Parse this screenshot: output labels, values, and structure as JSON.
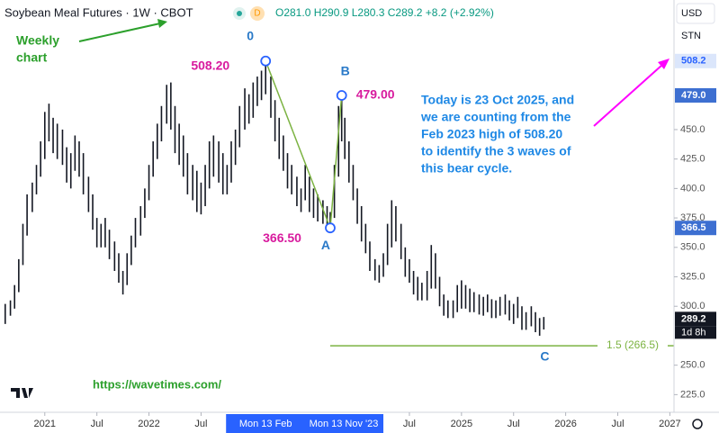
{
  "header": {
    "title": "Soybean Meal Futures · 1W · CBOT",
    "badge": "D",
    "ohlc": "O281.0 H290.9 L280.3 C289.2 +8.2 (+2.92%)"
  },
  "currency": "USD",
  "unit": "STN",
  "notes": {
    "weekly": [
      "Weekly",
      "chart"
    ],
    "comment": [
      "Today is 23 Oct 2025, and",
      "we are counting from the",
      "Feb 2023 high of 508.20",
      "to identify the 3 waves of",
      "this bear cycle."
    ],
    "url": "https://wavetimes.com/"
  },
  "chart_data": {
    "type": "ohlc",
    "color": "#131722",
    "xlim": [
      2020.57,
      2027.04
    ],
    "ylim": [
      210,
      560
    ],
    "x": [
      2020.62,
      2020.67,
      2020.71,
      2020.75,
      2020.79,
      2020.83,
      2020.88,
      2020.92,
      2020.96,
      2021.0,
      2021.04,
      2021.08,
      2021.12,
      2021.17,
      2021.21,
      2021.25,
      2021.29,
      2021.33,
      2021.37,
      2021.42,
      2021.46,
      2021.5,
      2021.54,
      2021.58,
      2021.62,
      2021.67,
      2021.71,
      2021.75,
      2021.79,
      2021.83,
      2021.87,
      2021.92,
      2021.96,
      2022.0,
      2022.04,
      2022.08,
      2022.12,
      2022.17,
      2022.21,
      2022.25,
      2022.29,
      2022.33,
      2022.37,
      2022.42,
      2022.46,
      2022.5,
      2022.54,
      2022.58,
      2022.62,
      2022.67,
      2022.71,
      2022.75,
      2022.79,
      2022.83,
      2022.87,
      2022.92,
      2022.96,
      2023.0,
      2023.04,
      2023.08,
      2023.12,
      2023.17,
      2023.21,
      2023.25,
      2023.29,
      2023.33,
      2023.37,
      2023.42,
      2023.46,
      2023.5,
      2023.54,
      2023.58,
      2023.62,
      2023.67,
      2023.71,
      2023.74,
      2023.78,
      2023.82,
      2023.85,
      2023.88,
      2023.92,
      2023.96,
      2024.0,
      2024.04,
      2024.08,
      2024.12,
      2024.17,
      2024.21,
      2024.25,
      2024.29,
      2024.33,
      2024.37,
      2024.42,
      2024.46,
      2024.5,
      2024.54,
      2024.58,
      2024.62,
      2024.67,
      2024.71,
      2024.75,
      2024.79,
      2024.83,
      2024.87,
      2024.92,
      2024.96,
      2025.0,
      2025.04,
      2025.08,
      2025.12,
      2025.17,
      2025.21,
      2025.25,
      2025.29,
      2025.33,
      2025.37,
      2025.42,
      2025.46,
      2025.5,
      2025.54,
      2025.58,
      2025.62,
      2025.67,
      2025.71,
      2025.75,
      2025.79
    ],
    "high": [
      302,
      305,
      318,
      340,
      370,
      395,
      405,
      420,
      440,
      465,
      472,
      460,
      455,
      450,
      435,
      430,
      445,
      440,
      430,
      410,
      395,
      375,
      370,
      375,
      365,
      355,
      345,
      330,
      345,
      360,
      375,
      385,
      400,
      420,
      440,
      455,
      470,
      488,
      490,
      470,
      455,
      445,
      430,
      420,
      415,
      405,
      420,
      440,
      445,
      440,
      430,
      420,
      440,
      450,
      470,
      485,
      480,
      490,
      495,
      500,
      508.2,
      495,
      475,
      460,
      445,
      430,
      420,
      410,
      400,
      420,
      410,
      400,
      395,
      390,
      385,
      380,
      420,
      470,
      479,
      460,
      440,
      420,
      400,
      385,
      370,
      355,
      340,
      335,
      345,
      370,
      390,
      385,
      370,
      350,
      340,
      330,
      325,
      320,
      330,
      352,
      345,
      325,
      310,
      305,
      305,
      318,
      322,
      318,
      315,
      312,
      310,
      308,
      310,
      306,
      305,
      308,
      310,
      305,
      302,
      308,
      300,
      295,
      300,
      295,
      290,
      290.9
    ],
    "low": [
      285,
      292,
      298,
      312,
      335,
      360,
      380,
      395,
      410,
      425,
      440,
      430,
      425,
      420,
      405,
      400,
      415,
      410,
      395,
      380,
      365,
      350,
      350,
      350,
      340,
      330,
      320,
      310,
      318,
      335,
      350,
      360,
      375,
      390,
      410,
      425,
      440,
      455,
      450,
      430,
      420,
      410,
      395,
      390,
      380,
      378,
      385,
      400,
      410,
      405,
      395,
      395,
      405,
      420,
      435,
      450,
      455,
      460,
      470,
      475,
      480,
      460,
      440,
      425,
      415,
      400,
      395,
      385,
      380,
      390,
      380,
      375,
      372,
      370,
      368,
      366.5,
      375,
      410,
      440,
      425,
      405,
      390,
      370,
      355,
      345,
      330,
      322,
      320,
      325,
      335,
      350,
      355,
      340,
      325,
      320,
      310,
      305,
      305,
      305,
      315,
      315,
      300,
      292,
      290,
      290,
      295,
      298,
      298,
      295,
      295,
      293,
      292,
      295,
      290,
      290,
      292,
      293,
      288,
      285,
      290,
      280,
      280,
      283,
      278,
      275,
      280.3
    ],
    "xticks": [
      {
        "value": 2021,
        "label": "2021"
      },
      {
        "value": 2021.5,
        "label": "Jul"
      },
      {
        "value": 2022,
        "label": "2022"
      },
      {
        "value": 2022.5,
        "label": "Jul"
      },
      {
        "value": 2024.5,
        "label": "Jul"
      },
      {
        "value": 2025,
        "label": "2025"
      },
      {
        "value": 2025.5,
        "label": "Jul"
      },
      {
        "value": 2026,
        "label": "2026"
      },
      {
        "value": 2026.5,
        "label": "Jul"
      },
      {
        "value": 2027,
        "label": "2027"
      }
    ],
    "crosshair_labels": [
      {
        "value": 2023.12,
        "label": "Mon 13 Feb"
      },
      {
        "value": 2023.87,
        "label": "Mon 13 Nov '23"
      }
    ],
    "yticks": [
      {
        "value": 225,
        "label": "225.0"
      },
      {
        "value": 250,
        "label": "250.0"
      },
      {
        "value": 300,
        "label": "300.0"
      },
      {
        "value": 325,
        "label": "325.0"
      },
      {
        "value": 350,
        "label": "350.0"
      },
      {
        "value": 375,
        "label": "375.0"
      },
      {
        "value": 400,
        "label": "400.0"
      },
      {
        "value": 425,
        "label": "425.0"
      },
      {
        "value": 450,
        "label": "450.0"
      }
    ],
    "price_tags": [
      508.2,
      {
        "value": 479,
        "label": "479.0"
      },
      366.5,
      289.2
    ],
    "countdown": "1d 8h",
    "waves": {
      "x": [
        2023.12,
        2023.74,
        2023.85
      ],
      "values": [
        508.2,
        366.5,
        479
      ],
      "labels": [
        "0",
        "A",
        "B"
      ],
      "value_labels": [
        "508.20",
        "366.50",
        "479.00"
      ]
    },
    "wave_end": {
      "x": 2025.8,
      "label": "C"
    },
    "fib": {
      "value": 266.5,
      "start": 2023.74,
      "label": "1.5 (266.5)"
    }
  }
}
